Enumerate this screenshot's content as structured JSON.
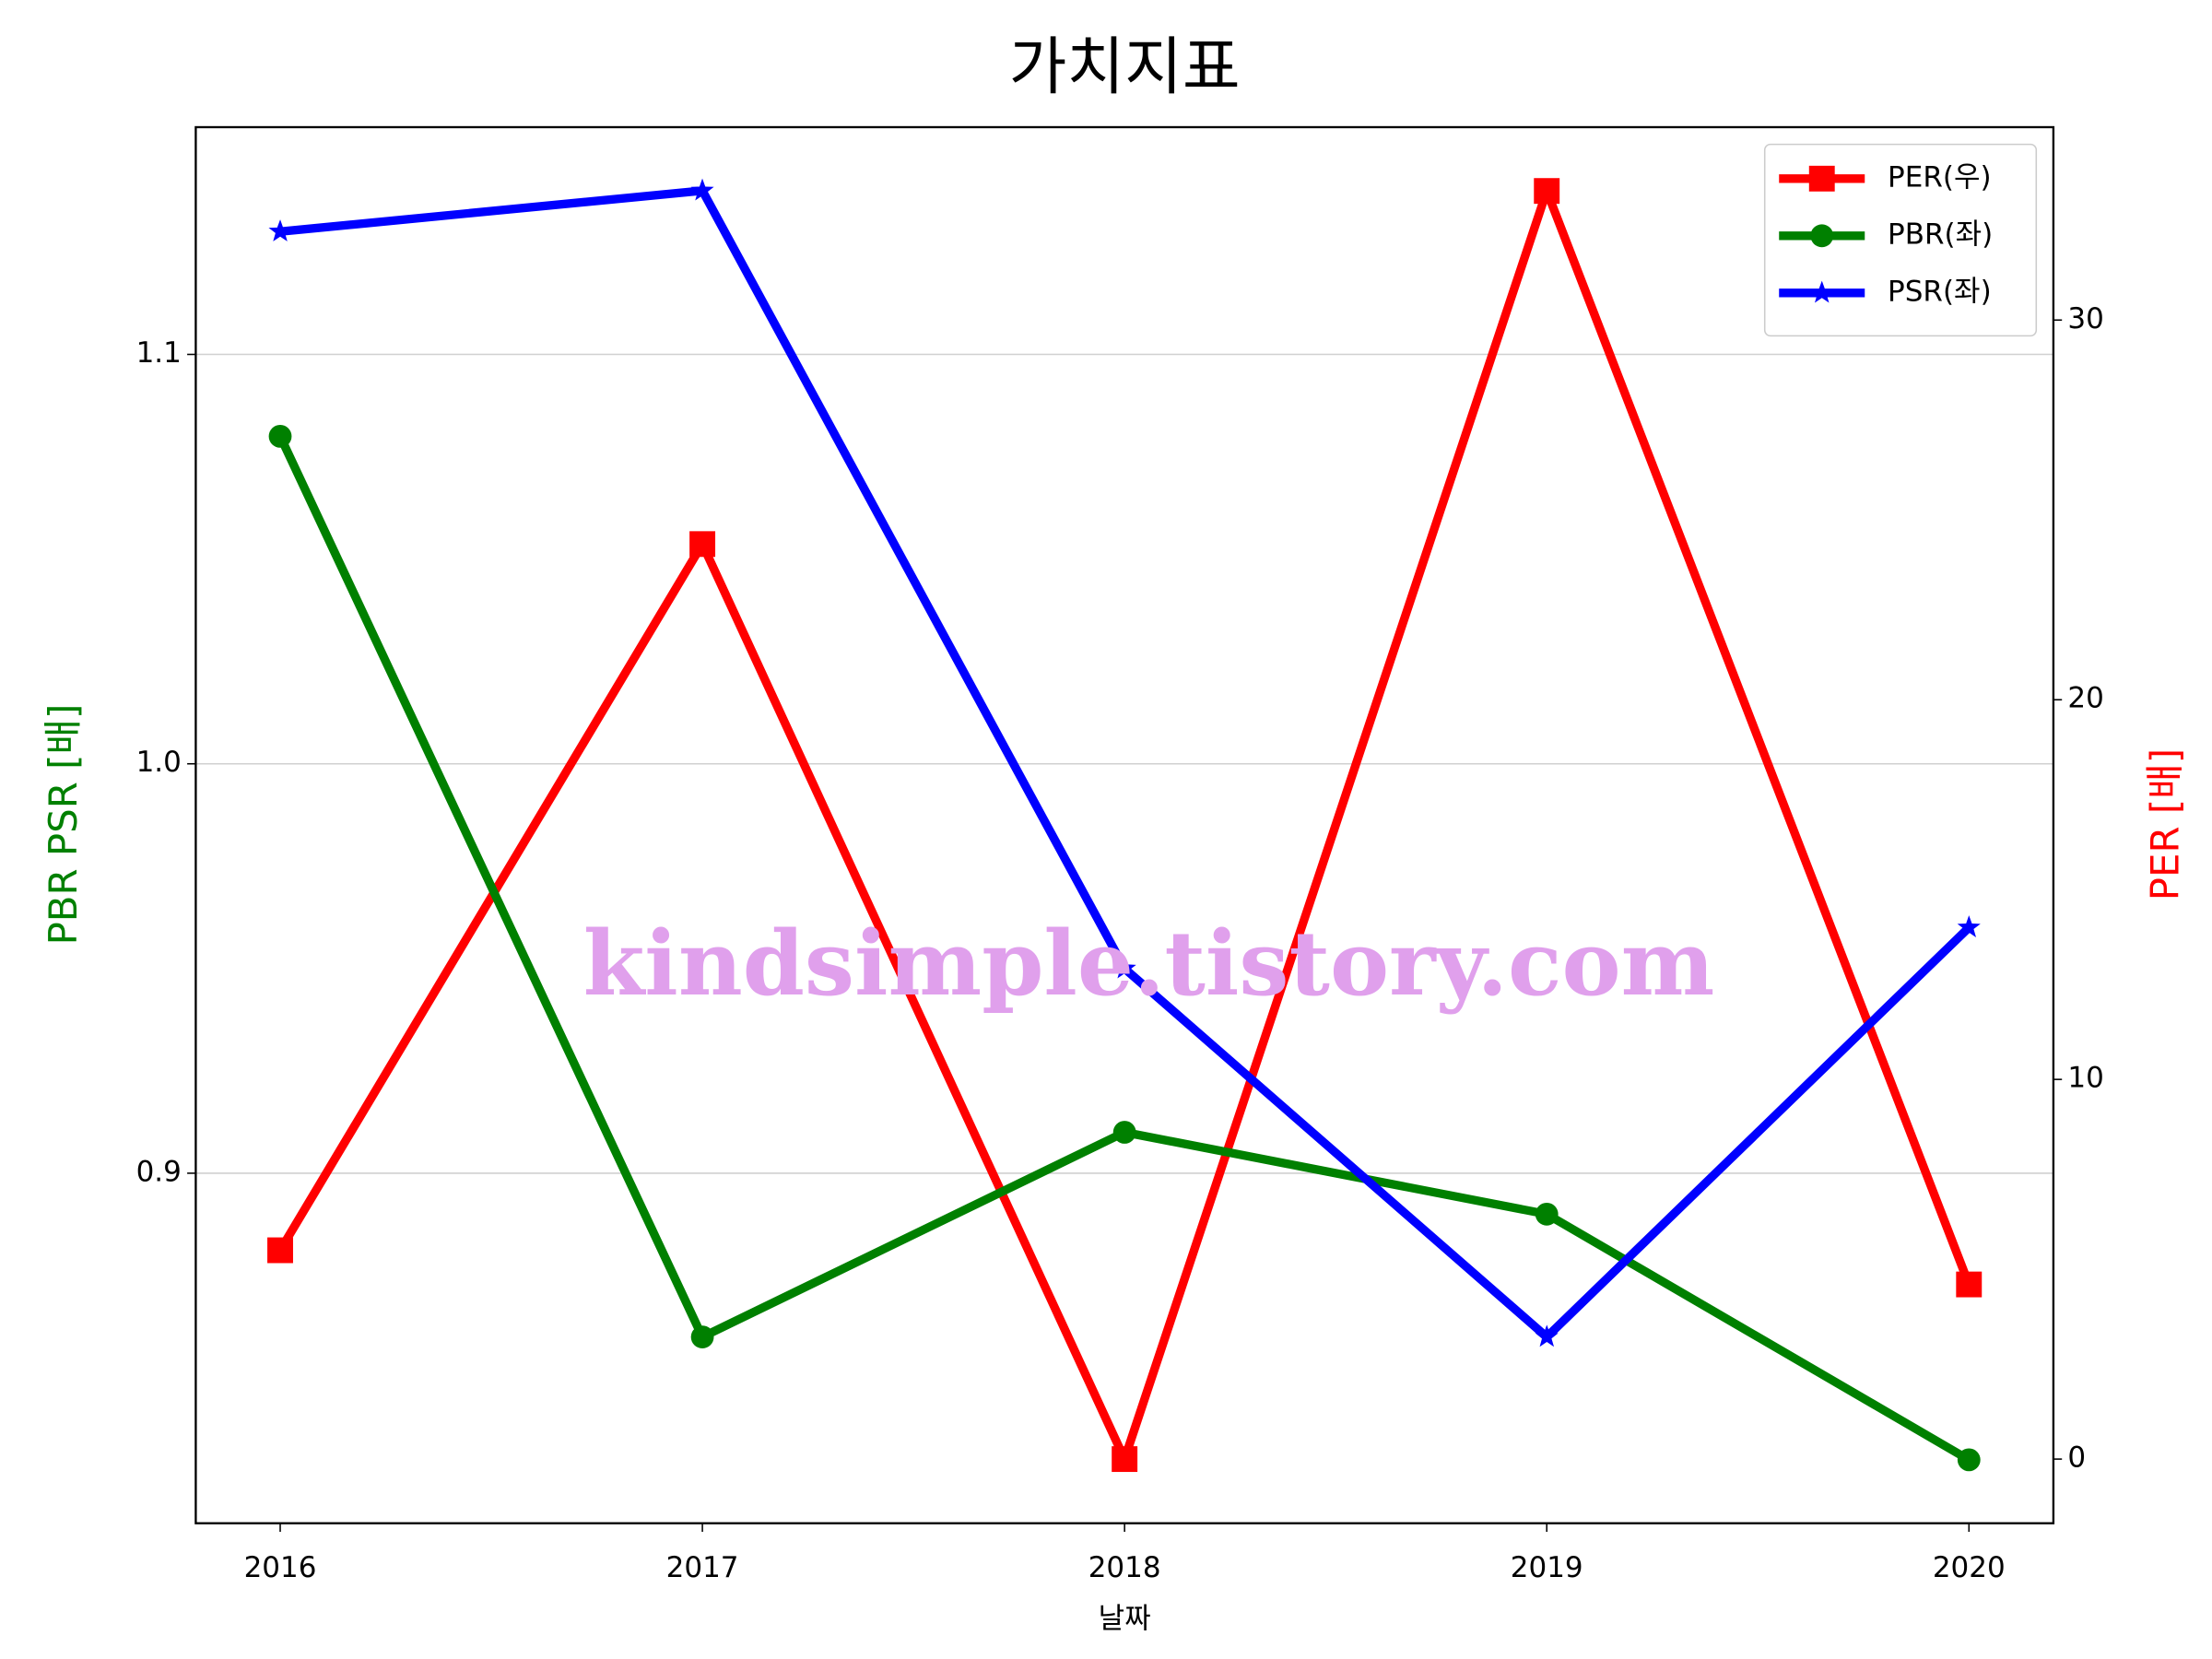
{
  "chart_data": {
    "type": "line",
    "title": "가치지표",
    "xlabel": "날짜",
    "ylabel": "PBR PSR [배]",
    "y2label": "PER [배]",
    "annotation": "kindsimple.tistory.com",
    "x": [
      2016,
      2017,
      2018,
      2019,
      2020
    ],
    "xlim": [
      2015.8,
      2020.2
    ],
    "xticks": [
      2016,
      2017,
      2018,
      2019,
      2020
    ],
    "ylim": [
      0.8145,
      1.1555
    ],
    "yticks": [
      0.9,
      {
        "value": 1.0,
        "label": "1.0"
      },
      1.1
    ],
    "y2lim": [
      -1.69,
      35.08
    ],
    "y2ticks": [
      0,
      10,
      20,
      30
    ],
    "grid": true,
    "legend": "upper right",
    "series": [
      {
        "name": "PER(우)",
        "color": "#ff0000",
        "marker": "square",
        "axis": "y2",
        "values": [
          5.5,
          24.1,
          0,
          33.4,
          4.6
        ]
      },
      {
        "name": "PBR(좌)",
        "color": "#008000",
        "marker": "circle",
        "values": [
          1.08,
          0.86,
          0.91,
          0.89,
          0.83
        ]
      },
      {
        "name": "PSR(좌)",
        "color": "#0000ff",
        "marker": "star",
        "values": [
          1.13,
          1.14,
          0.95,
          0.86,
          0.96
        ]
      }
    ]
  }
}
